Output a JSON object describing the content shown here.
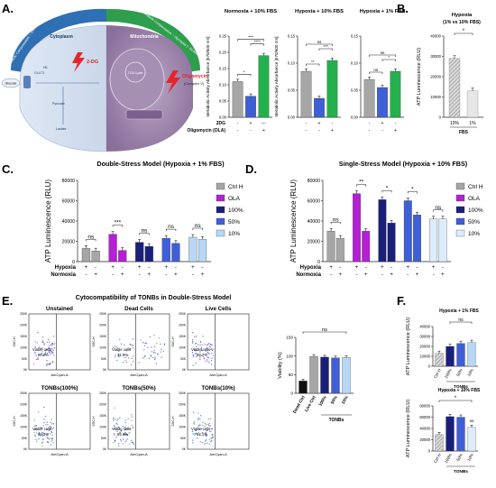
{
  "panel_letters": {
    "A": "A.",
    "B": "B.",
    "C": "C.",
    "D": "D.",
    "E": "E.",
    "F": "F."
  },
  "schematic": {
    "arc_left": "Metabolic Compensation: ↑ OXPHOS Activity (↑ OCR)",
    "arc_right": "Metabolic Compensation: ↑ Glycolysis (↑ ECAR)",
    "cytoplasm": "Cytoplasm",
    "mitochondria": "Mitochondria",
    "drug_2dg": "2-DG",
    "drug_olig": "Oligomycin",
    "drug_olig_sub": "(Complex V)",
    "glut1": "GLUT1",
    "glucose": "Glucose",
    "pyruvate": "Pyruvate",
    "lactate": "Lactate",
    "hk": "HK",
    "tca": "TCA Cycle"
  },
  "colors": {
    "gray": "#a6a6a6",
    "purple": "#b51fd6",
    "navy": "#1a1f7a",
    "blue": "#3f5fd6",
    "lightblue": "#b7d7f5",
    "paleblue": "#dcecfb",
    "green": "#22b14c",
    "hatch": "#9a9a9a"
  },
  "chart_data": [
    {
      "id": "A1",
      "type": "bar",
      "title": "Normoxia + 10% FBS",
      "ylabel": "Metabolic Activity Absorbance [570/600 nm]",
      "ylim": [
        0,
        0.25
      ],
      "yticks": [
        "0.00",
        "0.05",
        "0.10",
        "0.15",
        "0.20",
        "0.25"
      ],
      "values": [
        0.11,
        0.065,
        0.19
      ],
      "colors": [
        "#a6a6a6",
        "#3f5fd6",
        "#22b14c"
      ],
      "sig": [
        {
          "a": 0,
          "b": 1,
          "t": "*"
        },
        {
          "a": 1,
          "b": 2,
          "t": "****"
        },
        {
          "a": 0,
          "b": 2,
          "t": "***"
        }
      ],
      "row1_label": "2DG",
      "row1": [
        "-",
        "+",
        "---"
      ],
      "row2_label": "Oligomycin (OLA)",
      "row2": [
        "-",
        "-",
        "+"
      ]
    },
    {
      "id": "A2",
      "type": "bar",
      "title": "Hypoxia + 10% FBS",
      "ylabel": "Metabolic Activity Absorbance [570/600 nm]",
      "ylim": [
        0,
        0.15
      ],
      "yticks": [
        "0.00",
        "0.05",
        "0.10",
        "0.15"
      ],
      "values": [
        0.085,
        0.035,
        0.105
      ],
      "colors": [
        "#a6a6a6",
        "#3f5fd6",
        "#22b14c"
      ],
      "sig": [
        {
          "a": 0,
          "b": 1,
          "t": "**"
        },
        {
          "a": 1,
          "b": 2,
          "t": "***"
        },
        {
          "a": 0,
          "b": 2,
          "t": "ns"
        }
      ],
      "row1": [
        "-",
        "+",
        "-"
      ],
      "row2": [
        "-",
        "-",
        "+"
      ]
    },
    {
      "id": "A3",
      "type": "bar",
      "title": "Hypoxia + 1% FBS",
      "ylabel": "",
      "ylim": [
        0,
        0.15
      ],
      "yticks": [
        "0.00",
        "0.05",
        "0.10",
        "0.15"
      ],
      "values": [
        0.07,
        0.055,
        0.085
      ],
      "colors": [
        "#a6a6a6",
        "#3f5fd6",
        "#22b14c"
      ],
      "sig": [
        {
          "a": 0,
          "b": 1,
          "t": "ns"
        },
        {
          "a": 1,
          "b": 2,
          "t": "*"
        },
        {
          "a": 0,
          "b": 2,
          "t": "ns"
        }
      ],
      "row1": [
        "-",
        "+",
        "-"
      ],
      "row2": [
        "-",
        "-",
        "+"
      ]
    },
    {
      "id": "B",
      "type": "bar",
      "title": "Hypoxia",
      "subtitle": "(1% vs 10% FBS)",
      "ylabel": "ATP Luminescence (RLU)",
      "ylim": [
        0,
        40000
      ],
      "yticks": [
        "0",
        "10000",
        "20000",
        "30000",
        "40000"
      ],
      "categories": [
        "10%",
        "1%"
      ],
      "values": [
        29000,
        13000
      ],
      "xlabel": "FBS",
      "sig": [
        {
          "a": 0,
          "b": 1,
          "t": "*"
        }
      ]
    },
    {
      "id": "C",
      "type": "bar",
      "title": "Double-Stress Model (Hypoxia + 1% FBS)",
      "ylabel": "ATP Luminescence (RLU)",
      "ylim": [
        0,
        80000
      ],
      "yticks": [
        "0",
        "20000",
        "40000",
        "60000",
        "80000"
      ],
      "groups": [
        {
          "name": "Ctrl H",
          "color": "#a6a6a6",
          "values": [
            13000,
            10500
          ],
          "sig": "ns"
        },
        {
          "name": "OLA",
          "color": "#b51fd6",
          "values": [
            27000,
            11000
          ],
          "sig": "***"
        },
        {
          "name": "100%",
          "color": "#1a1f7a",
          "values": [
            19000,
            15000
          ],
          "sig": "ns"
        },
        {
          "name": "50%",
          "color": "#3f5fd6",
          "values": [
            23000,
            18000
          ],
          "sig": "ns"
        },
        {
          "name": "10%",
          "color": "#b7d7f5",
          "values": [
            24000,
            22000
          ],
          "sig": "ns"
        }
      ],
      "row1_label": "Hypoxia",
      "row1": [
        "+",
        "-"
      ],
      "row2_label": "Normoxia",
      "row2": [
        "-",
        "+"
      ]
    },
    {
      "id": "D",
      "type": "bar",
      "title": "Single-Stress Model (Hypoxia + 10% FBS)",
      "ylabel": "ATP Luminescence (RLU)",
      "ylim": [
        0,
        80000
      ],
      "yticks": [
        "0",
        "20000",
        "40000",
        "60000",
        "80000"
      ],
      "groups": [
        {
          "name": "Ctrl H",
          "color": "#a6a6a6",
          "values": [
            30000,
            23000
          ],
          "sig": "ns"
        },
        {
          "name": "OLA",
          "color": "#b51fd6",
          "values": [
            67000,
            30000
          ],
          "sig": "**"
        },
        {
          "name": "100%",
          "color": "#1a1f7a",
          "values": [
            61000,
            38000
          ],
          "sig": "*"
        },
        {
          "name": "50%",
          "color": "#3f5fd6",
          "values": [
            60000,
            46000
          ],
          "sig": "*"
        },
        {
          "name": "10%",
          "color": "#dcecfb",
          "values": [
            42000,
            42000
          ],
          "sig": "ns"
        }
      ],
      "row1_label": "Hypoxia",
      "row1": [
        "+",
        "-"
      ],
      "row2_label": "Normoxia",
      "row2": [
        "-",
        "+"
      ]
    },
    {
      "id": "E-bar",
      "type": "bar",
      "title": "",
      "ylabel": "Viability (%)",
      "ylim": [
        0,
        150
      ],
      "yticks": [
        "0",
        "50",
        "100",
        "150"
      ],
      "categories": [
        "Dead Ctrl",
        "Live Ctrl",
        "100%",
        "50%",
        "10%"
      ],
      "values": [
        33,
        99,
        97,
        95,
        96
      ],
      "colors": [
        "#111111",
        "#a6a6a6",
        "#1a1f7a",
        "#3f5fd6",
        "#b7d7f5"
      ],
      "sig_all": "ns",
      "group_label": "TONBs"
    },
    {
      "id": "F1",
      "type": "bar",
      "title": "Hypoxia + 1% FBS",
      "ylabel": "ATP Luminescence (RLU)",
      "ylim": [
        0,
        40000
      ],
      "yticks": [
        "0",
        "10000",
        "20000",
        "30000",
        "40000"
      ],
      "categories": [
        "Ctrl H",
        "100%",
        "50%",
        "10%"
      ],
      "values": [
        13000,
        20000,
        23000,
        24000
      ],
      "colors": [
        "#a6a6a6",
        "#1a1f7a",
        "#3f5fd6",
        "#b7d7f5"
      ],
      "sig_all": "ns",
      "group_label": "TONBs"
    },
    {
      "id": "F2",
      "type": "bar",
      "title": "Hypoxia + 10% FBS",
      "ylabel": "ATP Luminescence (RLU)",
      "ylim": [
        0,
        80000
      ],
      "yticks": [
        "0",
        "20000",
        "40000",
        "60000",
        "80000"
      ],
      "categories": [
        "Ctrl H",
        "100%",
        "50%",
        "10%"
      ],
      "values": [
        29000,
        61000,
        60000,
        42000
      ],
      "colors": [
        "#a6a6a6",
        "#1a1f7a",
        "#3f5fd6",
        "#dcecfb"
      ],
      "sig": [
        {
          "a": 0,
          "b": 3,
          "t": "*"
        }
      ],
      "sig_last": "ns",
      "group_label": "TONBs"
    }
  ],
  "flow": {
    "title": "Cytocompatibility of TONBs in Double-Stress Model",
    "xlabel": "AmCyan-A",
    "ylabel": "SSC-H",
    "yticks": [
      "0K",
      "50K",
      "100K",
      "150K",
      "200K",
      "250K"
    ],
    "plots": [
      {
        "title": "Unstained",
        "label": "Viable cells",
        "pct": "95.0%"
      },
      {
        "title": "Dead Cells",
        "label": "Viable cells",
        "pct": "31.9%"
      },
      {
        "title": "Live Cells",
        "label": "Viable cells",
        "pct": "99.7%"
      },
      {
        "title": "TONBs(100%)",
        "label": "Viable cells",
        "pct": "94.3%"
      },
      {
        "title": "TONBs(50%)",
        "label": "Viable cells",
        "pct": "85.6%"
      },
      {
        "title": "TONBs(10%)",
        "label": "Viable cells",
        "pct": "94.1%"
      }
    ]
  }
}
